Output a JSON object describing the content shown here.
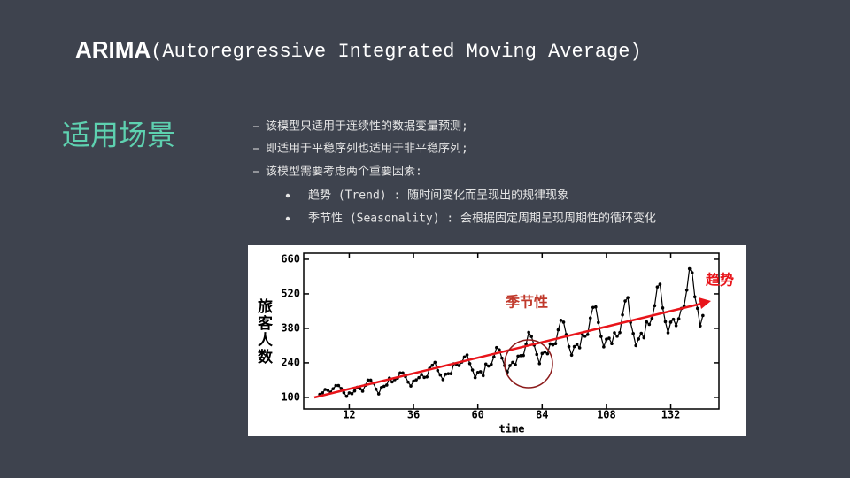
{
  "slide": {
    "title_bold": "ARIMA",
    "title_rest": "(Autoregressive Integrated Moving Average)",
    "section": "适用场景",
    "bullets": [
      "该模型只适用于连续性的数据变量预测;",
      "即适用于平稳序列也适用于非平稳序列;",
      "该模型需要考虑两个重要因素:"
    ],
    "sub_bullets": [
      "趋势 (Trend) : 随时间变化而呈现出的规律现象",
      "季节性 (Seasonality) : 会根据固定周期呈现周期性的循环变化"
    ]
  },
  "chart_data": {
    "type": "line",
    "x_label": "time",
    "y_label": "旅客人数",
    "annotations": [
      "季节性",
      "趋势"
    ],
    "color": "#000000",
    "x": [
      1,
      2,
      3,
      4,
      5,
      6,
      7,
      8,
      9,
      10,
      11,
      12,
      13,
      14,
      15,
      16,
      17,
      18,
      19,
      20,
      21,
      22,
      23,
      24,
      25,
      26,
      27,
      28,
      29,
      30,
      31,
      32,
      33,
      34,
      35,
      36,
      37,
      38,
      39,
      40,
      41,
      42,
      43,
      44,
      45,
      46,
      47,
      48,
      49,
      50,
      51,
      52,
      53,
      54,
      55,
      56,
      57,
      58,
      59,
      60,
      61,
      62,
      63,
      64,
      65,
      66,
      67,
      68,
      69,
      70,
      71,
      72,
      73,
      74,
      75,
      76,
      77,
      78,
      79,
      80,
      81,
      82,
      83,
      84,
      85,
      86,
      87,
      88,
      89,
      90,
      91,
      92,
      93,
      94,
      95,
      96,
      97,
      98,
      99,
      100,
      101,
      102,
      103,
      104,
      105,
      106,
      107,
      108,
      109,
      110,
      111,
      112,
      113,
      114,
      115,
      116,
      117,
      118,
      119,
      120,
      121,
      122,
      123,
      124,
      125,
      126,
      127,
      128,
      129,
      130,
      131,
      132,
      133,
      134,
      135,
      136,
      137,
      138,
      139,
      140,
      141,
      142,
      143,
      144
    ],
    "values": [
      112,
      118,
      132,
      129,
      121,
      135,
      148,
      148,
      136,
      119,
      104,
      118,
      115,
      126,
      141,
      135,
      125,
      149,
      170,
      170,
      158,
      133,
      114,
      140,
      145,
      150,
      178,
      163,
      172,
      178,
      199,
      199,
      184,
      162,
      146,
      166,
      171,
      180,
      193,
      181,
      183,
      218,
      230,
      242,
      209,
      191,
      172,
      194,
      196,
      196,
      236,
      235,
      229,
      243,
      264,
      272,
      237,
      211,
      180,
      201,
      204,
      188,
      235,
      227,
      234,
      264,
      302,
      293,
      259,
      229,
      203,
      229,
      242,
      233,
      267,
      269,
      270,
      315,
      364,
      347,
      312,
      274,
      237,
      278,
      284,
      277,
      317,
      313,
      318,
      374,
      413,
      405,
      355,
      306,
      271,
      306,
      315,
      301,
      356,
      348,
      355,
      422,
      465,
      467,
      404,
      347,
      305,
      336,
      340,
      318,
      362,
      348,
      363,
      435,
      491,
      505,
      404,
      359,
      310,
      337,
      360,
      342,
      406,
      396,
      420,
      472,
      548,
      559,
      463,
      407,
      362,
      405,
      417,
      391,
      419,
      461,
      472,
      535,
      622,
      606,
      508,
      461,
      390,
      432
    ],
    "xlim": [
      -5,
      150
    ],
    "ylim": [
      53,
      685
    ],
    "xticks": [
      12,
      36,
      60,
      84,
      108,
      132
    ],
    "yticks": [
      100,
      240,
      380,
      520,
      660
    ]
  }
}
